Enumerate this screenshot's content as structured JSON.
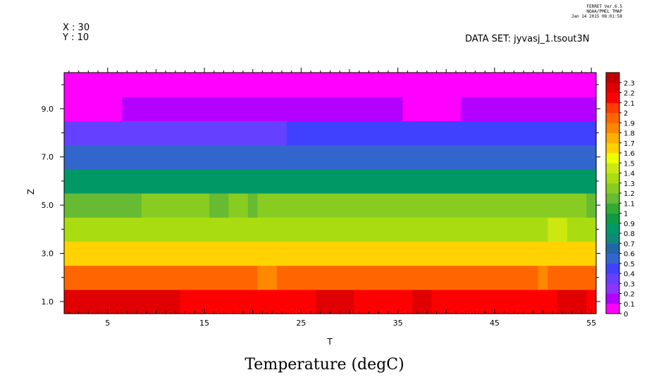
{
  "header": {
    "x_loc": "X : 30",
    "y_loc": "Y : 10",
    "dataset": "DATA SET: jyvasj_1.tsout3N",
    "ferret_version": "FERRET Ver.6.5",
    "ferret_org": "NOAA/PMEL TMAP",
    "ferret_date": "Jan 14 2015 08:01:58"
  },
  "colors": {
    "palette": [
      "#ff00ff",
      "#b300ff",
      "#8c33ff",
      "#6640ff",
      "#4040ff",
      "#3366cc",
      "#2266aa",
      "#118877",
      "#009966",
      "#119944",
      "#33aa33",
      "#66bb33",
      "#88cc22",
      "#aadd11",
      "#cce811",
      "#eeff00",
      "#ffd200",
      "#ffb000",
      "#ff8800",
      "#ff6600",
      "#ff3d00",
      "#ff0000",
      "#e00000",
      "#c00000",
      "#a00000"
    ]
  },
  "chart_data": {
    "type": "heatmap",
    "title": "Temperature (degC)",
    "xlabel": "T",
    "ylabel": "Z",
    "xlim": [
      0.5,
      55.5
    ],
    "ylim": [
      0.5,
      10.5
    ],
    "x_ticks": [
      5,
      15,
      25,
      35,
      45,
      55
    ],
    "y_ticks": [
      1.0,
      3.0,
      5.0,
      7.0,
      9.0
    ],
    "y_tick_labels": [
      "1.0",
      "3.0",
      "5.0",
      "7.0",
      "9.0"
    ],
    "colorbar_levels": [
      0,
      0.1,
      0.2,
      0.3,
      0.4,
      0.5,
      0.6,
      0.7,
      0.8,
      0.9,
      1,
      1.1,
      1.2,
      1.3,
      1.4,
      1.5,
      1.6,
      1.7,
      1.8,
      1.9,
      2,
      2.1,
      2.2,
      2.3
    ],
    "rows": [
      {
        "z": 1,
        "segments": [
          [
            1,
            12,
            2.25
          ],
          [
            13,
            26,
            2.15
          ],
          [
            27,
            30,
            2.25
          ],
          [
            31,
            36,
            2.15
          ],
          [
            37,
            38,
            2.25
          ],
          [
            39,
            51,
            2.15
          ],
          [
            52,
            54,
            2.25
          ],
          [
            55,
            55,
            2.15
          ]
        ]
      },
      {
        "z": 2,
        "segments": [
          [
            1,
            20,
            1.95
          ],
          [
            21,
            22,
            1.85
          ],
          [
            23,
            49,
            1.95
          ],
          [
            50,
            50,
            1.85
          ],
          [
            51,
            55,
            1.95
          ]
        ]
      },
      {
        "z": 3,
        "segments": [
          [
            1,
            55,
            1.65
          ]
        ]
      },
      {
        "z": 4,
        "segments": [
          [
            1,
            2,
            1.35
          ],
          [
            3,
            50,
            1.35
          ],
          [
            51,
            52,
            1.45
          ],
          [
            53,
            55,
            1.35
          ]
        ]
      },
      {
        "z": 5,
        "segments": [
          [
            1,
            8,
            1.15
          ],
          [
            9,
            15,
            1.25
          ],
          [
            16,
            17,
            1.15
          ],
          [
            18,
            19,
            1.25
          ],
          [
            20,
            20,
            1.15
          ],
          [
            21,
            52,
            1.25
          ],
          [
            53,
            54,
            1.25
          ],
          [
            55,
            55,
            1.15
          ]
        ]
      },
      {
        "z": 6,
        "segments": [
          [
            1,
            55,
            0.85
          ]
        ]
      },
      {
        "z": 7,
        "segments": [
          [
            1,
            55,
            0.55
          ]
        ]
      },
      {
        "z": 8,
        "segments": [
          [
            1,
            23,
            0.35
          ],
          [
            24,
            55,
            0.45
          ]
        ]
      },
      {
        "z": 9,
        "segments": [
          [
            1,
            6,
            0.05
          ],
          [
            7,
            35,
            0.15
          ],
          [
            36,
            41,
            0.05
          ],
          [
            42,
            55,
            0.15
          ]
        ]
      },
      {
        "z": 10,
        "segments": [
          [
            1,
            55,
            0.05
          ]
        ]
      }
    ]
  }
}
